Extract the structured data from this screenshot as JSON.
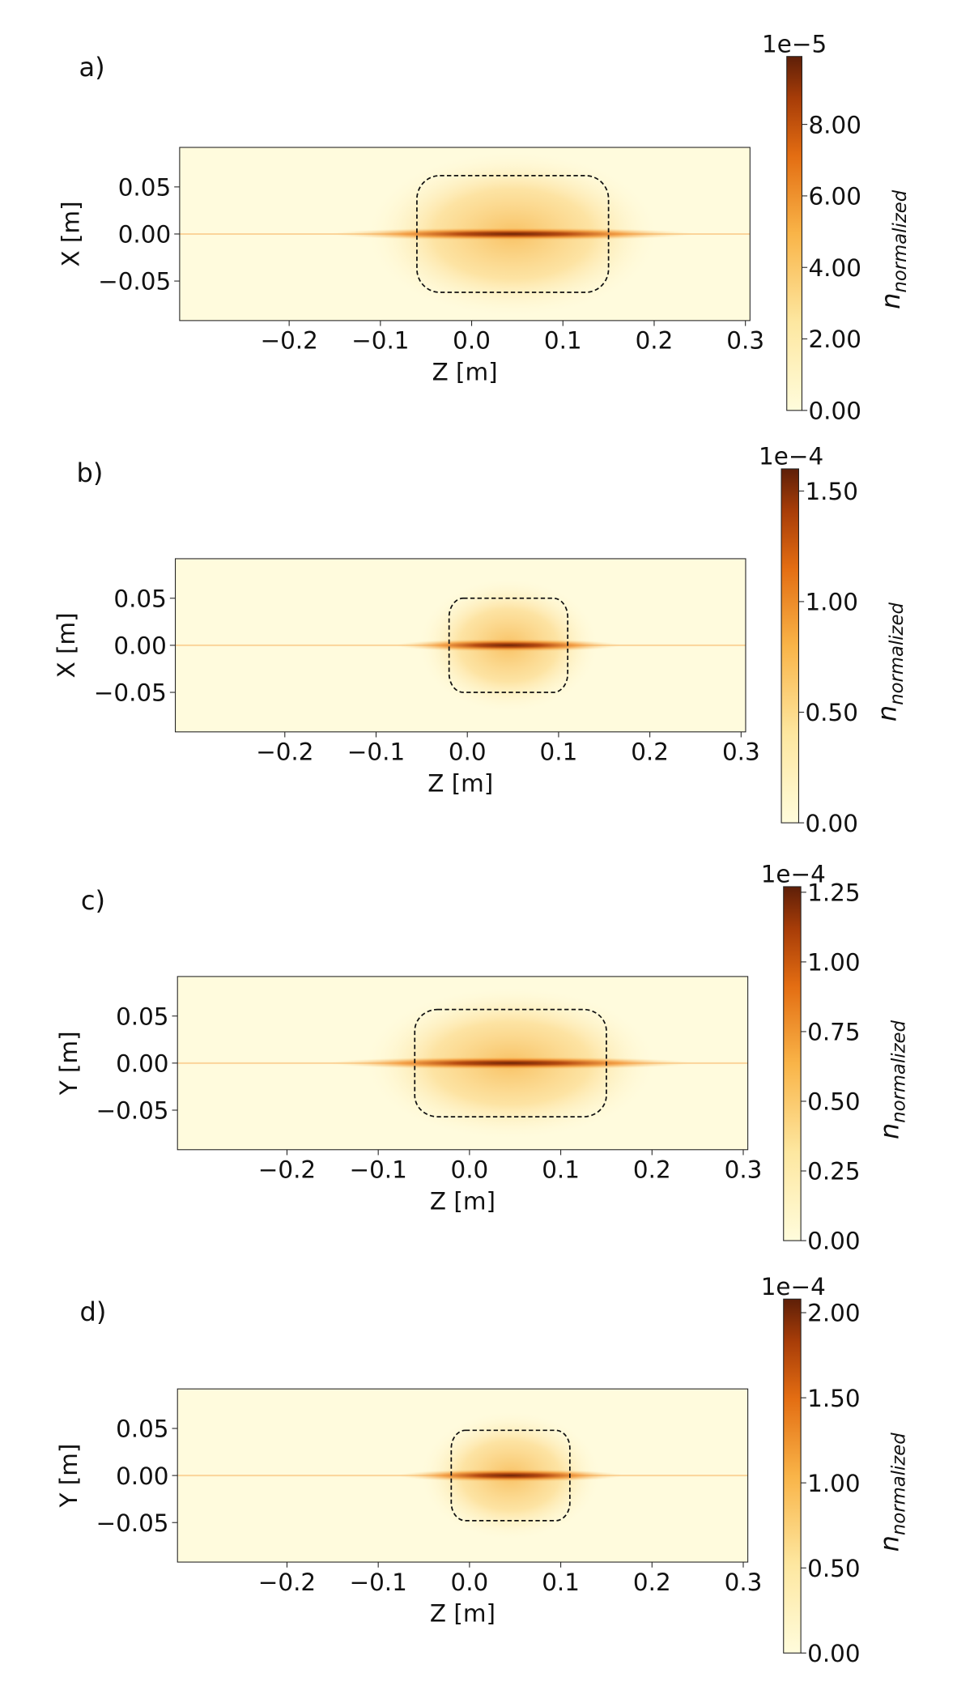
{
  "chart_data": [
    {
      "type": "heatmap",
      "panel_label": "a)",
      "xlabel": "Z [m]",
      "ylabel": "X [m]",
      "xlim": [
        -0.32,
        0.305
      ],
      "ylim": [
        -0.092,
        0.092
      ],
      "xticks": [
        {
          "value": -0.2,
          "label": "−0.2"
        },
        {
          "value": -0.1,
          "label": "−0.1"
        },
        {
          "value": 0,
          "label": "0.0"
        },
        0.1,
        0.2,
        0.3
      ],
      "yticks": [
        0.05,
        {
          "value": 0,
          "label": "0.00"
        },
        {
          "value": -0.05,
          "label": "−0.05"
        }
      ],
      "region": {
        "z": [
          -0.06,
          0.15
        ],
        "x": [
          -0.062,
          0.062
        ]
      },
      "colorbar": {
        "label": "n",
        "label_subscript": "normalized",
        "offset": "1e−5",
        "lim": [
          0,
          9.9
        ],
        "ticks": [
          {
            "value": 0,
            "label": "0.00"
          },
          {
            "value": 2,
            "label": "2.00"
          },
          {
            "value": 4,
            "label": "4.00"
          },
          {
            "value": 6,
            "label": "6.00"
          },
          {
            "value": 8,
            "label": "8.00"
          }
        ]
      }
    },
    {
      "type": "heatmap",
      "panel_label": "b)",
      "xlabel": "Z [m]",
      "ylabel": "X [m]",
      "xlim": [
        -0.32,
        0.305
      ],
      "ylim": [
        -0.092,
        0.092
      ],
      "xticks": [
        {
          "value": -0.2,
          "label": "−0.2"
        },
        {
          "value": -0.1,
          "label": "−0.1"
        },
        {
          "value": 0,
          "label": "0.0"
        },
        0.1,
        0.2,
        0.3
      ],
      "yticks": [
        0.05,
        {
          "value": 0,
          "label": "0.00"
        },
        {
          "value": -0.05,
          "label": "−0.05"
        }
      ],
      "region": {
        "z": [
          -0.02,
          0.11
        ],
        "x": [
          -0.05,
          0.05
        ]
      },
      "colorbar": {
        "label": "n",
        "label_subscript": "normalized",
        "offset": "1e−4",
        "lim": [
          0,
          1.6
        ],
        "ticks": [
          {
            "value": 0,
            "label": "0.00"
          },
          {
            "value": 0.5,
            "label": "0.50"
          },
          {
            "value": 1,
            "label": "1.00"
          },
          {
            "value": 1.5,
            "label": "1.50"
          }
        ]
      }
    },
    {
      "type": "heatmap",
      "panel_label": "c)",
      "xlabel": "Z [m]",
      "ylabel": "Y [m]",
      "xlim": [
        -0.32,
        0.305
      ],
      "ylim": [
        -0.092,
        0.092
      ],
      "xticks": [
        {
          "value": -0.2,
          "label": "−0.2"
        },
        {
          "value": -0.1,
          "label": "−0.1"
        },
        {
          "value": 0,
          "label": "0.0"
        },
        0.1,
        0.2,
        0.3
      ],
      "yticks": [
        0.05,
        {
          "value": 0,
          "label": "0.00"
        },
        {
          "value": -0.05,
          "label": "−0.05"
        }
      ],
      "region": {
        "z": [
          -0.06,
          0.15
        ],
        "x": [
          -0.057,
          0.057
        ]
      },
      "colorbar": {
        "label": "n",
        "label_subscript": "normalized",
        "offset": "1e−4",
        "lim": [
          0,
          1.27
        ],
        "ticks": [
          {
            "value": 0,
            "label": "0.00"
          },
          0.25,
          {
            "value": 0.5,
            "label": "0.50"
          },
          0.75,
          {
            "value": 1,
            "label": "1.00"
          },
          1.25
        ]
      }
    },
    {
      "type": "heatmap",
      "panel_label": "d)",
      "xlabel": "Z [m]",
      "ylabel": "Y [m]",
      "xlim": [
        -0.32,
        0.305
      ],
      "ylim": [
        -0.092,
        0.092
      ],
      "xticks": [
        {
          "value": -0.2,
          "label": "−0.2"
        },
        {
          "value": -0.1,
          "label": "−0.1"
        },
        {
          "value": 0,
          "label": "0.0"
        },
        0.1,
        0.2,
        0.3
      ],
      "yticks": [
        0.05,
        {
          "value": 0,
          "label": "0.00"
        },
        {
          "value": -0.05,
          "label": "−0.05"
        }
      ],
      "region": {
        "z": [
          -0.02,
          0.11
        ],
        "x": [
          -0.048,
          0.048
        ]
      },
      "colorbar": {
        "label": "n",
        "label_subscript": "normalized",
        "offset": "1e−4",
        "lim": [
          0,
          2.08
        ],
        "ticks": [
          {
            "value": 0,
            "label": "0.00"
          },
          {
            "value": 0.5,
            "label": "0.50"
          },
          {
            "value": 1,
            "label": "1.00"
          },
          {
            "value": 1.5,
            "label": "1.50"
          },
          {
            "value": 2,
            "label": "2.00"
          }
        ]
      }
    }
  ]
}
